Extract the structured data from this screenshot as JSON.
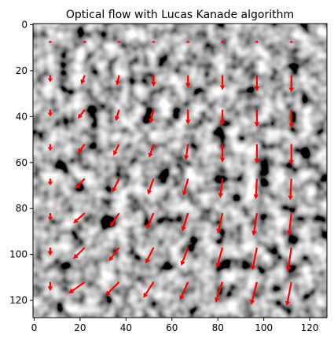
{
  "chart_data": {
    "type": "image-quiver",
    "title": "Optical flow with Lucas Kanade algorithm",
    "xlabel": "",
    "ylabel": "",
    "xlim": [
      0,
      127
    ],
    "ylim": [
      127,
      0
    ],
    "x_ticks": [
      0,
      20,
      40,
      60,
      80,
      100,
      120
    ],
    "y_ticks": [
      0,
      20,
      40,
      60,
      80,
      100,
      120
    ],
    "grid": false,
    "image": {
      "colormap": "gray",
      "description": "noise texture"
    },
    "quiver": {
      "color": "#ff0000",
      "x": [
        7,
        22,
        37,
        52,
        67,
        82,
        97,
        112
      ],
      "y": [
        7,
        22,
        37,
        52,
        67,
        82,
        97,
        112
      ],
      "u": [
        [
          0.0,
          0.0,
          0.0,
          0.0,
          0.0,
          0.0,
          0.0,
          0.0
        ],
        [
          0.0,
          -1.5,
          -1.0,
          0.0,
          0.0,
          0.0,
          0.0,
          0.0
        ],
        [
          0.0,
          -3.0,
          -1.5,
          -1.5,
          0.0,
          0.0,
          0.0,
          0.0
        ],
        [
          0.0,
          -3.0,
          -2.5,
          -2.0,
          -1.0,
          0.0,
          0.0,
          0.0
        ],
        [
          0.0,
          -4.0,
          -3.0,
          -2.5,
          -2.0,
          -1.0,
          -0.5,
          -0.5
        ],
        [
          0.0,
          -5.0,
          -4.0,
          -3.0,
          -2.5,
          -2.0,
          -1.5,
          -1.0
        ],
        [
          0.0,
          -5.0,
          -4.5,
          -3.5,
          -3.0,
          -2.5,
          -2.0,
          -1.5
        ],
        [
          0.0,
          -7.0,
          -6.0,
          -4.5,
          -3.5,
          -3.0,
          -2.5,
          -2.0
        ]
      ],
      "v": [
        [
          1.0,
          1.0,
          1.0,
          1.0,
          1.0,
          1.0,
          1.0,
          1.0
        ],
        [
          3.0,
          4.0,
          4.5,
          5.0,
          5.5,
          6.5,
          7.0,
          7.5
        ],
        [
          3.0,
          4.0,
          5.0,
          6.0,
          6.5,
          7.0,
          7.5,
          8.0
        ],
        [
          3.0,
          4.0,
          5.0,
          6.0,
          7.0,
          8.0,
          8.5,
          9.0
        ],
        [
          3.0,
          4.5,
          6.0,
          7.0,
          7.5,
          8.5,
          9.0,
          9.5
        ],
        [
          3.5,
          4.5,
          6.0,
          7.0,
          8.0,
          9.0,
          10.0,
          10.0
        ],
        [
          3.5,
          5.0,
          6.0,
          7.0,
          8.0,
          9.0,
          10.0,
          10.5
        ],
        [
          4.0,
          5.0,
          6.0,
          7.0,
          8.0,
          9.0,
          10.0,
          10.5
        ]
      ]
    }
  }
}
